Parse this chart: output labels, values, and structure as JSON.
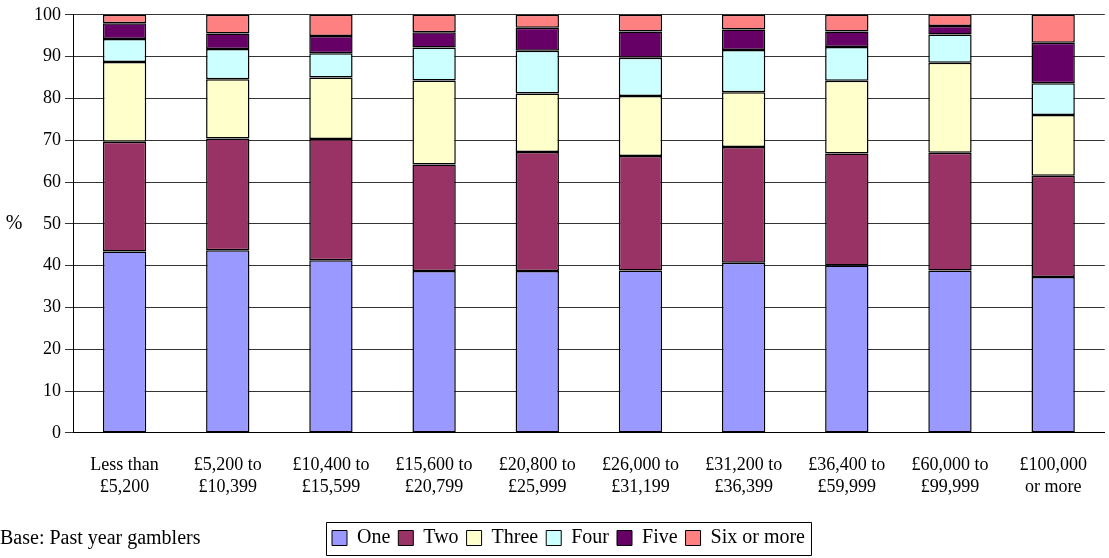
{
  "chart_data": {
    "type": "bar",
    "stacked": true,
    "ylabel": "%",
    "categories": [
      "Less than £5,200",
      "£5,200 to £10,399",
      "£10,400 to £15,599",
      "£15,600 to £20,799",
      "£20,800 to £25,999",
      "£26,000 to £31,199",
      "£31,200 to £36,399",
      "£36,400 to £59,999",
      "£60,000 to £99,999",
      "£100,000 or more"
    ],
    "series": [
      {
        "name": "One",
        "color": "#9999ff",
        "values": [
          43.4,
          43.7,
          41.3,
          38.7,
          38.7,
          38.8,
          40.7,
          40.0,
          38.8,
          37.3
        ]
      },
      {
        "name": "Two",
        "color": "#993366",
        "values": [
          26.2,
          26.7,
          29.0,
          25.5,
          28.5,
          27.4,
          27.7,
          26.8,
          28.2,
          24.2
        ]
      },
      {
        "name": "Three",
        "color": "#ffffcc",
        "values": [
          19.1,
          14.2,
          14.7,
          20.1,
          14.0,
          14.4,
          13.1,
          17.4,
          21.5,
          14.5
        ]
      },
      {
        "name": "Four",
        "color": "#ccffff",
        "values": [
          5.5,
          7.2,
          5.8,
          7.9,
          10.2,
          9.1,
          10.1,
          8.1,
          6.8,
          7.6
        ]
      },
      {
        "name": "Five",
        "color": "#660066",
        "values": [
          3.8,
          3.7,
          4.1,
          3.6,
          5.5,
          6.3,
          4.9,
          3.7,
          2.0,
          9.7
        ]
      },
      {
        "name": "Six or more",
        "color": "#ff8080",
        "values": [
          2.0,
          4.5,
          5.1,
          4.2,
          3.1,
          4.0,
          3.5,
          4.0,
          2.7,
          6.7
        ]
      }
    ],
    "ylim": [
      0,
      100
    ],
    "yticks": [
      0,
      10,
      20,
      30,
      40,
      50,
      60,
      70,
      80,
      90,
      100
    ],
    "grid": "y",
    "legend": "bottom",
    "annotations": [
      "Base: Past year gamblers"
    ]
  }
}
